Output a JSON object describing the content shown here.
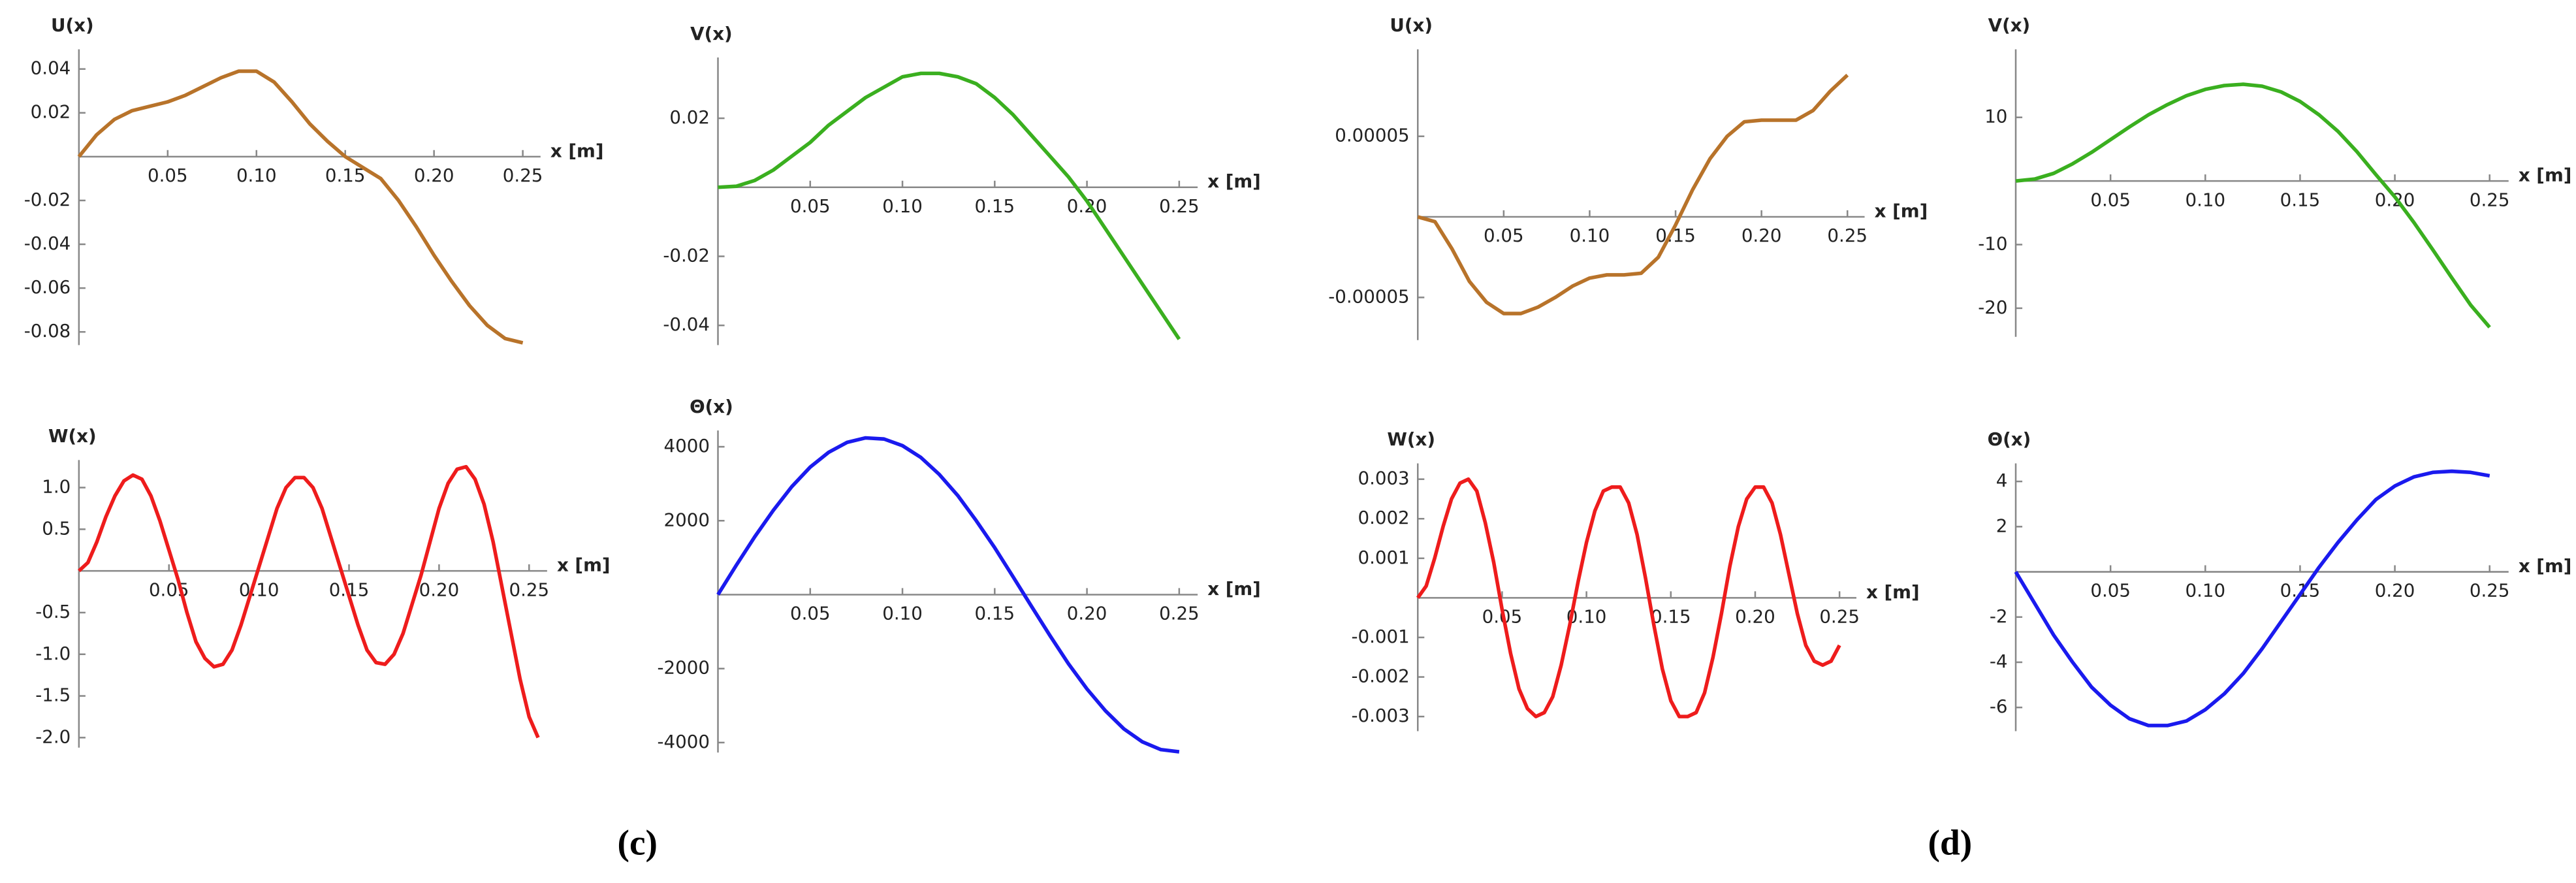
{
  "chart_data": [
    {
      "type": "line",
      "y_label": "U(x)",
      "x_label": "x [m]",
      "x": [
        0,
        0.01,
        0.02,
        0.03,
        0.04,
        0.05,
        0.06,
        0.07,
        0.08,
        0.09,
        0.1,
        0.11,
        0.12,
        0.13,
        0.14,
        0.15,
        0.16,
        0.17,
        0.18,
        0.19,
        0.2,
        0.21,
        0.22,
        0.23,
        0.24,
        0.25
      ],
      "series": [
        {
          "name": "U(x)",
          "color": "#b8732a",
          "values": [
            0,
            0.01,
            0.017,
            0.021,
            0.023,
            0.025,
            0.028,
            0.032,
            0.036,
            0.039,
            0.039,
            0.034,
            0.025,
            0.015,
            0.007,
            0,
            -0.005,
            -0.01,
            -0.02,
            -0.032,
            -0.045,
            -0.057,
            -0.068,
            -0.077,
            -0.083,
            -0.085
          ]
        }
      ],
      "xlim": [
        0,
        0.26
      ],
      "ylim": [
        -0.086,
        0.049
      ],
      "xticks": [
        0.05,
        {
          "value": 0.1,
          "label": "0.10"
        },
        0.15,
        {
          "value": 0.2,
          "label": "0.20"
        },
        0.25
      ],
      "yticks": [
        0.04,
        0.02,
        -0.02,
        -0.04,
        -0.06,
        -0.08
      ]
    },
    {
      "type": "line",
      "y_label": "V(x)",
      "x_label": "x [m]",
      "x": [
        0,
        0.01,
        0.02,
        0.03,
        0.04,
        0.05,
        0.06,
        0.07,
        0.08,
        0.09,
        0.1,
        0.11,
        0.12,
        0.13,
        0.14,
        0.15,
        0.16,
        0.17,
        0.18,
        0.19,
        0.2,
        0.21,
        0.22,
        0.23,
        0.24,
        0.25
      ],
      "series": [
        {
          "name": "V(x)",
          "color": "#3aaf1f",
          "values": [
            0,
            0.0003,
            0.002,
            0.005,
            0.009,
            0.013,
            0.018,
            0.022,
            0.026,
            0.029,
            0.032,
            0.033,
            0.033,
            0.032,
            0.03,
            0.026,
            0.021,
            0.015,
            0.009,
            0.003,
            -0.004,
            -0.012,
            -0.02,
            -0.028,
            -0.036,
            -0.044
          ]
        }
      ],
      "xlim": [
        0,
        0.26
      ],
      "ylim": [
        -0.0457,
        0.0376
      ],
      "xticks": [
        0.05,
        {
          "value": 0.1,
          "label": "0.10"
        },
        0.15,
        {
          "value": 0.2,
          "label": "0.20"
        },
        0.25
      ],
      "yticks": [
        0.02,
        -0.02,
        -0.04
      ]
    },
    {
      "type": "line",
      "y_label": "U(x)",
      "x_label": "x [m]",
      "x": [
        0,
        0.01,
        0.02,
        0.03,
        0.04,
        0.05,
        0.06,
        0.07,
        0.08,
        0.09,
        0.1,
        0.11,
        0.12,
        0.13,
        0.14,
        0.15,
        0.16,
        0.17,
        0.18,
        0.19,
        0.2,
        0.21,
        0.22,
        0.23,
        0.24,
        0.25
      ],
      "series": [
        {
          "name": "U(x)",
          "color": "#b8732a",
          "values": [
            0,
            -3e-06,
            -2e-05,
            -4e-05,
            -5.3e-05,
            -6e-05,
            -6e-05,
            -5.6e-05,
            -5e-05,
            -4.3e-05,
            -3.8e-05,
            -3.6e-05,
            -3.6e-05,
            -3.5e-05,
            -2.5e-05,
            -5e-06,
            1.7e-05,
            3.6e-05,
            5e-05,
            5.9e-05,
            6e-05,
            6e-05,
            6e-05,
            6.6e-05,
            7.8e-05,
            8.8e-05
          ]
        }
      ],
      "xlim": [
        0,
        0.26
      ],
      "ylim": [
        -7.65e-05,
        0.000104
      ],
      "xticks": [
        0.05,
        {
          "value": 0.1,
          "label": "0.10"
        },
        0.15,
        {
          "value": 0.2,
          "label": "0.20"
        },
        0.25
      ],
      "yticks": [
        5e-05,
        -5e-05
      ]
    },
    {
      "type": "line",
      "y_label": "V(x)",
      "x_label": "x [m]",
      "x": [
        0,
        0.01,
        0.02,
        0.03,
        0.04,
        0.05,
        0.06,
        0.07,
        0.08,
        0.09,
        0.1,
        0.11,
        0.12,
        0.13,
        0.14,
        0.15,
        0.16,
        0.17,
        0.18,
        0.19,
        0.2,
        0.21,
        0.22,
        0.23,
        0.24,
        0.25
      ],
      "series": [
        {
          "name": "V(x)",
          "color": "#3aaf1f",
          "values": [
            0,
            0.3,
            1.2,
            2.7,
            4.5,
            6.5,
            8.5,
            10.4,
            12,
            13.4,
            14.4,
            15,
            15.2,
            14.9,
            14,
            12.5,
            10.4,
            7.8,
            4.6,
            1,
            -2.5,
            -6.5,
            -10.8,
            -15.2,
            -19.5,
            -23
          ]
        }
      ],
      "xlim": [
        0,
        0.26
      ],
      "ylim": [
        -24.5,
        20.7
      ],
      "xticks": [
        0.05,
        {
          "value": 0.1,
          "label": "0.10"
        },
        0.15,
        {
          "value": 0.2,
          "label": "0.20"
        },
        0.25
      ],
      "yticks": [
        10,
        -10,
        -20
      ]
    },
    {
      "type": "line",
      "y_label": "W(x)",
      "x_label": "x [m]",
      "x": [
        0,
        0.005,
        0.01,
        0.015,
        0.02,
        0.025,
        0.03,
        0.035,
        0.04,
        0.045,
        0.05,
        0.055,
        0.06,
        0.065,
        0.07,
        0.075,
        0.08,
        0.085,
        0.09,
        0.095,
        0.1,
        0.105,
        0.11,
        0.115,
        0.12,
        0.125,
        0.13,
        0.135,
        0.14,
        0.145,
        0.15,
        0.155,
        0.16,
        0.165,
        0.17,
        0.175,
        0.18,
        0.185,
        0.19,
        0.195,
        0.2,
        0.205,
        0.21,
        0.215,
        0.22,
        0.225,
        0.23,
        0.235,
        0.24,
        0.245,
        0.25,
        0.255
      ],
      "series": [
        {
          "name": "W(x)",
          "color": "#ee1c1c",
          "values": [
            0,
            0.1,
            0.35,
            0.65,
            0.9,
            1.08,
            1.15,
            1.1,
            0.9,
            0.6,
            0.25,
            -0.1,
            -0.5,
            -0.85,
            -1.05,
            -1.15,
            -1.12,
            -0.95,
            -0.65,
            -0.3,
            0.05,
            0.4,
            0.75,
            1,
            1.12,
            1.12,
            1,
            0.75,
            0.4,
            0.05,
            -0.3,
            -0.65,
            -0.95,
            -1.1,
            -1.12,
            -1,
            -0.75,
            -0.4,
            -0.05,
            0.35,
            0.75,
            1.05,
            1.22,
            1.25,
            1.1,
            0.8,
            0.35,
            -0.2,
            -0.75,
            -1.3,
            -1.75,
            -2
          ]
        }
      ],
      "xlim": [
        0,
        0.26
      ],
      "ylim": [
        -2.12,
        1.33
      ],
      "xticks": [
        0.05,
        {
          "value": 0.1,
          "label": "0.10"
        },
        0.15,
        {
          "value": 0.2,
          "label": "0.20"
        },
        0.25
      ],
      "yticks": [
        {
          "value": 1,
          "label": "1.0"
        },
        0.5,
        -0.5,
        {
          "value": -1,
          "label": "-1.0"
        },
        -1.5,
        {
          "value": -2,
          "label": "-2.0"
        }
      ]
    },
    {
      "type": "line",
      "y_label": "Θ(x)",
      "x_label": "x [m]",
      "x": [
        0,
        0.01,
        0.02,
        0.03,
        0.04,
        0.05,
        0.06,
        0.07,
        0.08,
        0.09,
        0.1,
        0.11,
        0.12,
        0.13,
        0.14,
        0.15,
        0.16,
        0.17,
        0.18,
        0.19,
        0.2,
        0.21,
        0.22,
        0.23,
        0.24,
        0.25
      ],
      "series": [
        {
          "name": "Θ(x)",
          "color": "#1a1aee",
          "values": [
            0,
            800,
            1570,
            2280,
            2920,
            3450,
            3850,
            4120,
            4240,
            4210,
            4030,
            3710,
            3250,
            2680,
            2000,
            1270,
            480,
            -320,
            -1110,
            -1870,
            -2550,
            -3140,
            -3630,
            -3980,
            -4190,
            -4250
          ]
        }
      ],
      "xlim": [
        0,
        0.26
      ],
      "ylim": [
        -4270,
        4440
      ],
      "xticks": [
        0.05,
        {
          "value": 0.1,
          "label": "0.10"
        },
        0.15,
        {
          "value": 0.2,
          "label": "0.20"
        },
        0.25
      ],
      "yticks": [
        4000,
        2000,
        -2000,
        -4000
      ]
    },
    {
      "type": "line",
      "y_label": "W(x)",
      "x_label": "x [m]",
      "x": [
        0,
        0.005,
        0.01,
        0.015,
        0.02,
        0.025,
        0.03,
        0.035,
        0.04,
        0.045,
        0.05,
        0.055,
        0.06,
        0.065,
        0.07,
        0.075,
        0.08,
        0.085,
        0.09,
        0.095,
        0.1,
        0.105,
        0.11,
        0.115,
        0.12,
        0.125,
        0.13,
        0.135,
        0.14,
        0.145,
        0.15,
        0.155,
        0.16,
        0.165,
        0.17,
        0.175,
        0.18,
        0.185,
        0.19,
        0.195,
        0.2,
        0.205,
        0.21,
        0.215,
        0.22,
        0.225,
        0.23,
        0.235,
        0.24,
        0.245,
        0.25
      ],
      "series": [
        {
          "name": "W(x)",
          "color": "#ee1c1c",
          "values": [
            0,
            0.0003,
            0.001,
            0.0018,
            0.0025,
            0.0029,
            0.003,
            0.0027,
            0.0019,
            0.0009,
            -0.0003,
            -0.0014,
            -0.0023,
            -0.0028,
            -0.003,
            -0.0029,
            -0.0025,
            -0.0017,
            -0.0007,
            0.0004,
            0.0014,
            0.0022,
            0.0027,
            0.0028,
            0.0028,
            0.0024,
            0.0016,
            0.0005,
            -0.0007,
            -0.0018,
            -0.0026,
            -0.003,
            -0.003,
            -0.0029,
            -0.0024,
            -0.0015,
            -0.0004,
            0.0008,
            0.0018,
            0.0025,
            0.0028,
            0.0028,
            0.0024,
            0.0016,
            0.0006,
            -0.0004,
            -0.0012,
            -0.0016,
            -0.0017,
            -0.0016,
            -0.0012
          ]
        }
      ],
      "xlim": [
        0,
        0.26
      ],
      "ylim": [
        -0.00337,
        0.0034
      ],
      "xticks": [
        0.05,
        {
          "value": 0.1,
          "label": "0.10"
        },
        0.15,
        {
          "value": 0.2,
          "label": "0.20"
        },
        0.25
      ],
      "yticks": [
        0.003,
        0.002,
        0.001,
        -0.001,
        -0.002,
        -0.003
      ]
    },
    {
      "type": "line",
      "y_label": "Θ(x)",
      "x_label": "x [m]",
      "x": [
        0,
        0.01,
        0.02,
        0.03,
        0.04,
        0.05,
        0.06,
        0.07,
        0.08,
        0.09,
        0.1,
        0.11,
        0.12,
        0.13,
        0.14,
        0.15,
        0.16,
        0.17,
        0.18,
        0.19,
        0.2,
        0.21,
        0.22,
        0.23,
        0.24,
        0.25
      ],
      "series": [
        {
          "name": "Θ(x)",
          "color": "#1a1aee",
          "values": [
            0,
            -1.4,
            -2.8,
            -4,
            -5.1,
            -5.9,
            -6.5,
            -6.8,
            -6.8,
            -6.6,
            -6.1,
            -5.4,
            -4.5,
            -3.4,
            -2.2,
            -1,
            0.2,
            1.3,
            2.3,
            3.2,
            3.8,
            4.2,
            4.4,
            4.45,
            4.4,
            4.25
          ]
        }
      ],
      "xlim": [
        0,
        0.26
      ],
      "ylim": [
        -7.05,
        4.8
      ],
      "xticks": [
        0.05,
        {
          "value": 0.1,
          "label": "0.10"
        },
        0.15,
        {
          "value": 0.2,
          "label": "0.20"
        },
        0.25
      ],
      "yticks": [
        4,
        2,
        -2,
        -4,
        -6
      ]
    }
  ],
  "panel_labels": [
    "(c)",
    "(d)"
  ]
}
